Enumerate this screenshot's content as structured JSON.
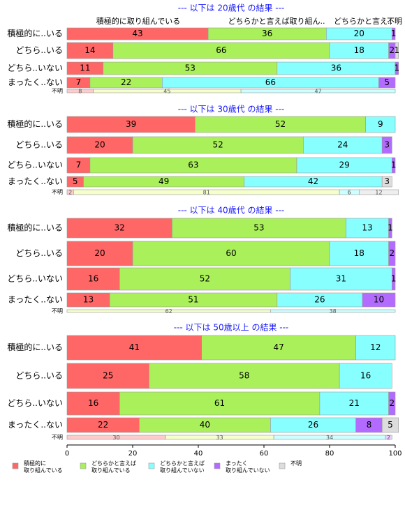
{
  "chart_data": {
    "type": "stacked-horizontal-bar",
    "series": [
      {
        "name": "積極的に\n取り組んでいる",
        "color": "#ff6666",
        "pale_color": "#ffcccc"
      },
      {
        "name": "どちらかと言えば\n取り組んでいる",
        "color": "#aaf05a",
        "pale_color": "#f4ffcc"
      },
      {
        "name": "どちらかと言えば\n取り組んでいない",
        "color": "#88ffff",
        "pale_color": "#ccffff"
      },
      {
        "name": "まったく\n取り組んでいない",
        "color": "#b36bff",
        "pale_color": "#e6d0ff"
      },
      {
        "name": "不明",
        "color": "#dddddd",
        "pale_color": "#eeeeee"
      }
    ],
    "xlim": [
      0,
      100
    ],
    "xticks": [
      0,
      20,
      40,
      60,
      80,
      100
    ],
    "panels": [
      {
        "title": "--- 以下は 20歳代 の結果 ---",
        "column_labels": [
          "積極的に取り組んでいる",
          "どちらかと言えば取り組ん..",
          "どちらかと言え..",
          "不明"
        ],
        "categories": [
          "積極的に..いる",
          "どちら..いる",
          "どちら..いない",
          "まったく..ない",
          "不明"
        ],
        "values": [
          [
            43,
            36,
            20,
            1,
            null
          ],
          [
            14,
            66,
            18,
            2,
            1
          ],
          [
            11,
            53,
            36,
            1,
            null
          ],
          [
            7,
            22,
            66,
            5,
            null
          ],
          [
            8,
            45,
            47,
            null,
            null
          ]
        ]
      },
      {
        "title": "--- 以下は 30歳代 の結果 ---",
        "categories": [
          "積極的に..いる",
          "どちら..いる",
          "どちら..いない",
          "まったく..ない",
          "不明"
        ],
        "values": [
          [
            39,
            52,
            9,
            null,
            null
          ],
          [
            20,
            52,
            24,
            3,
            null
          ],
          [
            7,
            63,
            29,
            1,
            null
          ],
          [
            5,
            49,
            42,
            null,
            3
          ],
          [
            2,
            81,
            6,
            null,
            12
          ]
        ]
      },
      {
        "title": "--- 以下は 40歳代 の結果 ---",
        "categories": [
          "積極的に..いる",
          "どちら..いる",
          "どちら..いない",
          "まったく..ない",
          "不明"
        ],
        "values": [
          [
            32,
            53,
            13,
            1,
            null
          ],
          [
            20,
            60,
            18,
            2,
            null
          ],
          [
            16,
            52,
            31,
            1,
            null
          ],
          [
            13,
            51,
            26,
            10,
            null
          ],
          [
            null,
            62,
            38,
            null,
            null
          ]
        ]
      },
      {
        "title": "--- 以下は 50歳以上 の結果 ---",
        "categories": [
          "積極的に..いる",
          "どちら..いる",
          "どちら..いない",
          "まったく..ない",
          "不明"
        ],
        "values": [
          [
            41,
            47,
            12,
            null,
            null
          ],
          [
            25,
            58,
            16,
            null,
            null
          ],
          [
            16,
            61,
            21,
            2,
            null
          ],
          [
            22,
            40,
            26,
            8,
            5
          ],
          [
            30,
            33,
            34,
            2,
            null
          ]
        ]
      }
    ]
  }
}
